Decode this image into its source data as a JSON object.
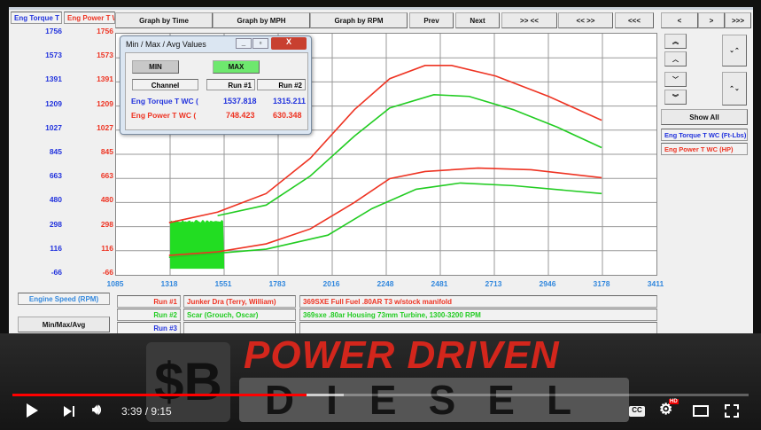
{
  "app": {
    "axis_tabs": [
      "Eng Torque T W",
      "Eng Power T W"
    ],
    "toolbar": [
      "Graph by Time",
      "Graph by MPH",
      "Graph by RPM",
      "Prev",
      "Next",
      ">> <<",
      "<< >>",
      "<<<",
      "<",
      ">",
      ">>>"
    ],
    "side": {
      "show_all": "Show All",
      "legend": [
        "Eng Torque T WC (Ft-Lbs)",
        "Eng Power T WC (HP)"
      ],
      "zoom_icons": [
        "double-up-icon",
        "up-icon",
        "down-icon",
        "double-down-icon",
        "expand-icon",
        "collapse-icon"
      ]
    },
    "x_axis_label": "Engine Speed (RPM)",
    "minmax_button": "Min/Max/Avg",
    "runs": [
      {
        "label": "Run #1",
        "name": "Junker Dra (Terry, William)",
        "desc": "369SXE Full Fuel .80AR T3 w/stock manifold",
        "color": "#ee3322"
      },
      {
        "label": "Run #2",
        "name": "Scar (Grouch, Oscar)",
        "desc": "369sxe .80ar Housing 73mm Turbine, 1300-3200 RPM",
        "color": "#22cc22"
      },
      {
        "label": "Run #3",
        "name": "",
        "desc": "",
        "color": "#2233dd"
      }
    ]
  },
  "dialog": {
    "title": "Min / Max / Avg Values",
    "min": "MIN",
    "max": "MAX",
    "headers": [
      "Channel",
      "Run #1",
      "Run #2"
    ],
    "rows": [
      [
        "Eng Torque T WC (",
        "1537.818",
        "1315.211"
      ],
      [
        "Eng Power T WC (",
        "748.423",
        "630.348"
      ]
    ]
  },
  "chart_data": {
    "type": "line",
    "x_ticks": [
      "1085",
      "1318",
      "1551",
      "1783",
      "2016",
      "2248",
      "2481",
      "2713",
      "2946",
      "3178",
      "3411"
    ],
    "y_ticks": [
      "1756",
      "1573",
      "1391",
      "1209",
      "1027",
      "845",
      "663",
      "480",
      "298",
      "116",
      "-66"
    ],
    "xlim": [
      1085,
      3411
    ],
    "ylim": [
      -66,
      1756
    ],
    "grid": true,
    "series": [
      {
        "name": "Eng Torque T WC (Ft-Lbs)",
        "run": "Run #1",
        "color": "#ee3322",
        "x": [
          1313,
          1522,
          1731,
          1921,
          2111,
          2263,
          2415,
          2529,
          2719,
          2947,
          3175
        ],
        "y": [
          328,
          408,
          548,
          815,
          1182,
          1416,
          1516,
          1516,
          1436,
          1282,
          1102
        ]
      },
      {
        "name": "Eng Torque T WC (Ft-Lbs)",
        "run": "Run #2",
        "color": "#22cc22",
        "x": [
          1522,
          1731,
          1921,
          2111,
          2263,
          2453,
          2605,
          2795,
          2985,
          3175
        ],
        "y": [
          381,
          461,
          681,
          982,
          1195,
          1295,
          1282,
          1182,
          1049,
          895
        ]
      },
      {
        "name": "Eng Power T WC (HP)",
        "run": "Run #1",
        "color": "#ee3322",
        "x": [
          1313,
          1522,
          1731,
          1921,
          2111,
          2263,
          2415,
          2643,
          2871,
          3175
        ],
        "y": [
          81,
          108,
          168,
          281,
          481,
          661,
          715,
          741,
          728,
          668
        ]
      },
      {
        "name": "Eng Power T WC (HP)",
        "run": "Run #2",
        "color": "#22cc22",
        "x": [
          1313,
          1731,
          1997,
          2187,
          2377,
          2567,
          2795,
          3175
        ],
        "y": [
          67,
          128,
          234,
          435,
          581,
          628,
          608,
          548
        ]
      }
    ]
  },
  "video": {
    "brand_line1": "POWER DRIVEN",
    "brand_line2": "DIESEL",
    "time": "3:39 / 9:15",
    "progress_percent": 40,
    "buffered_percent": 45,
    "accent": "#ff0000"
  }
}
